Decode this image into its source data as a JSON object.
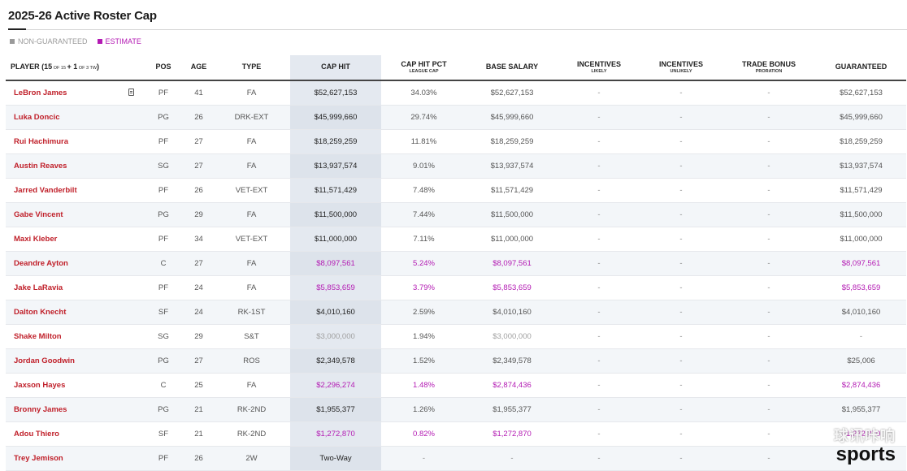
{
  "title": "2025-26 Active Roster Cap",
  "legend": {
    "non_guaranteed": "NON-GUARANTEED",
    "estimate": "ESTIMATE"
  },
  "colors": {
    "player_name": "#c0202a",
    "estimate": "#b31ab3",
    "non_guaranteed": "#a0a0a0",
    "cap_hit_col": "#e4e9f0"
  },
  "headers": {
    "player_prefix": "PLAYER (15",
    "player_of15": " OF 15 ",
    "player_plus": "+ 1",
    "player_of3tw": " OF 3 TW",
    "player_suffix": ")",
    "pos": "POS",
    "age": "AGE",
    "type": "TYPE",
    "cap_hit": "CAP HIT",
    "cap_hit_pct": "CAP HIT PCT",
    "cap_hit_pct_sub": "LEAGUE CAP",
    "base_salary": "BASE SALARY",
    "incentives_likely": "INCENTIVES",
    "incentives_likely_sub": "LIKELY",
    "incentives_unlikely": "INCENTIVES",
    "incentives_unlikely_sub": "UNLIKELY",
    "trade_bonus": "TRADE BONUS",
    "trade_bonus_sub": "PRORATION",
    "guaranteed": "GUARANTEED"
  },
  "rows": [
    {
      "name": "LeBron James",
      "pos": "PF",
      "age": "41",
      "type": "FA",
      "cap_hit": "$52,627,153",
      "pct": "34.03%",
      "base": "$52,627,153",
      "inc_l": "-",
      "inc_u": "-",
      "trade": "-",
      "guar": "$52,627,153"
    },
    {
      "name": "Luka Doncic",
      "pos": "PG",
      "age": "26",
      "type": "DRK-EXT",
      "cap_hit": "$45,999,660",
      "pct": "29.74%",
      "base": "$45,999,660",
      "inc_l": "-",
      "inc_u": "-",
      "trade": "-",
      "guar": "$45,999,660"
    },
    {
      "name": "Rui Hachimura",
      "pos": "PF",
      "age": "27",
      "type": "FA",
      "cap_hit": "$18,259,259",
      "pct": "11.81%",
      "base": "$18,259,259",
      "inc_l": "-",
      "inc_u": "-",
      "trade": "-",
      "guar": "$18,259,259"
    },
    {
      "name": "Austin Reaves",
      "pos": "SG",
      "age": "27",
      "type": "FA",
      "cap_hit": "$13,937,574",
      "pct": "9.01%",
      "base": "$13,937,574",
      "inc_l": "-",
      "inc_u": "-",
      "trade": "-",
      "guar": "$13,937,574"
    },
    {
      "name": "Jarred Vanderbilt",
      "pos": "PF",
      "age": "26",
      "type": "VET-EXT",
      "cap_hit": "$11,571,429",
      "pct": "7.48%",
      "base": "$11,571,429",
      "inc_l": "-",
      "inc_u": "-",
      "trade": "-",
      "guar": "$11,571,429"
    },
    {
      "name": "Gabe Vincent",
      "pos": "PG",
      "age": "29",
      "type": "FA",
      "cap_hit": "$11,500,000",
      "pct": "7.44%",
      "base": "$11,500,000",
      "inc_l": "-",
      "inc_u": "-",
      "trade": "-",
      "guar": "$11,500,000"
    },
    {
      "name": "Maxi Kleber",
      "pos": "PF",
      "age": "34",
      "type": "VET-EXT",
      "cap_hit": "$11,000,000",
      "pct": "7.11%",
      "base": "$11,000,000",
      "inc_l": "-",
      "inc_u": "-",
      "trade": "-",
      "guar": "$11,000,000"
    },
    {
      "name": "Deandre Ayton",
      "pos": "C",
      "age": "27",
      "type": "FA",
      "cap_hit": "$8,097,561",
      "pct": "5.24%",
      "base": "$8,097,561",
      "inc_l": "-",
      "inc_u": "-",
      "trade": "-",
      "guar": "$8,097,561"
    },
    {
      "name": "Jake LaRavia",
      "pos": "PF",
      "age": "24",
      "type": "FA",
      "cap_hit": "$5,853,659",
      "pct": "3.79%",
      "base": "$5,853,659",
      "inc_l": "-",
      "inc_u": "-",
      "trade": "-",
      "guar": "$5,853,659"
    },
    {
      "name": "Dalton Knecht",
      "pos": "SF",
      "age": "24",
      "type": "RK-1ST",
      "cap_hit": "$4,010,160",
      "pct": "2.59%",
      "base": "$4,010,160",
      "inc_l": "-",
      "inc_u": "-",
      "trade": "-",
      "guar": "$4,010,160"
    },
    {
      "name": "Shake Milton",
      "pos": "SG",
      "age": "29",
      "type": "S&T",
      "cap_hit": "$3,000,000",
      "pct": "1.94%",
      "base": "$3,000,000",
      "inc_l": "-",
      "inc_u": "-",
      "trade": "-",
      "guar": "-"
    },
    {
      "name": "Jordan Goodwin",
      "pos": "PG",
      "age": "27",
      "type": "ROS",
      "cap_hit": "$2,349,578",
      "pct": "1.52%",
      "base": "$2,349,578",
      "inc_l": "-",
      "inc_u": "-",
      "trade": "-",
      "guar": "$25,006"
    },
    {
      "name": "Jaxson Hayes",
      "pos": "C",
      "age": "25",
      "type": "FA",
      "cap_hit": "$2,296,274",
      "pct": "1.48%",
      "base": "$2,874,436",
      "inc_l": "-",
      "inc_u": "-",
      "trade": "-",
      "guar": "$2,874,436"
    },
    {
      "name": "Bronny James",
      "pos": "PG",
      "age": "21",
      "type": "RK-2ND",
      "cap_hit": "$1,955,377",
      "pct": "1.26%",
      "base": "$1,955,377",
      "inc_l": "-",
      "inc_u": "-",
      "trade": "-",
      "guar": "$1,955,377"
    },
    {
      "name": "Adou Thiero",
      "pos": "SF",
      "age": "21",
      "type": "RK-2ND",
      "cap_hit": "$1,272,870",
      "pct": "0.82%",
      "base": "$1,272,870",
      "inc_l": "-",
      "inc_u": "-",
      "trade": "-",
      "guar": "$1,272,870"
    },
    {
      "name": "Trey Jemison",
      "pos": "PF",
      "age": "26",
      "type": "2W",
      "cap_hit": "Two-Way",
      "pct": "-",
      "base": "-",
      "inc_l": "-",
      "inc_u": "-",
      "trade": "-",
      "guar": "-"
    }
  ],
  "watermark": {
    "cn": "球讯咔响",
    "en": "sports"
  }
}
